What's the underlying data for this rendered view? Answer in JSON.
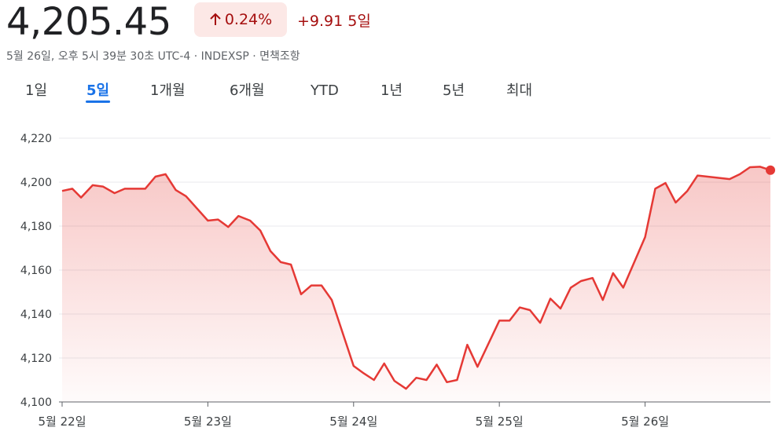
{
  "header": {
    "price": "4,205.45",
    "change_pct": "0.24%",
    "change_abs": "+9.91",
    "period": "5일",
    "subtitle": "5월 26일, 오후 5시 39분 30초 UTC-4 · INDEXSP · 면책조항"
  },
  "tabs": {
    "items": [
      "1일",
      "5일",
      "1개월",
      "6개월",
      "YTD",
      "1년",
      "5년",
      "최대"
    ],
    "selected": 1
  },
  "chart_data": {
    "type": "line",
    "color": "#e53935",
    "grid": true,
    "x": [
      22.0,
      22.07,
      22.13,
      22.21,
      22.28,
      22.36,
      22.43,
      22.57,
      22.64,
      22.71,
      22.78,
      22.85,
      23.0,
      23.07,
      23.14,
      23.21,
      23.29,
      23.36,
      23.43,
      23.5,
      23.57,
      23.64,
      23.71,
      23.78,
      23.85,
      24.0,
      24.07,
      24.14,
      24.21,
      24.28,
      24.36,
      24.43,
      24.5,
      24.57,
      24.64,
      24.71,
      24.78,
      24.85,
      25.0,
      25.07,
      25.14,
      25.21,
      25.28,
      25.35,
      25.42,
      25.49,
      25.56,
      25.64,
      25.71,
      25.78,
      25.85,
      26.0,
      26.07,
      26.14,
      26.21,
      26.29,
      26.36,
      26.58,
      26.65,
      26.72,
      26.79,
      26.86
    ],
    "values": [
      4196,
      4197,
      4193,
      4198.6,
      4198,
      4195,
      4197,
      4197,
      4202.5,
      4203.6,
      4196.4,
      4193.6,
      4182.5,
      4183,
      4179.6,
      4184.6,
      4182.5,
      4178,
      4168.6,
      4163.6,
      4162.5,
      4149,
      4153,
      4153,
      4146.4,
      4116.4,
      4113,
      4110,
      4117.5,
      4109.6,
      4106,
      4111,
      4110,
      4117,
      4109,
      4110,
      4126,
      4116,
      4137,
      4137,
      4143,
      4141.8,
      4136,
      4147,
      4142.5,
      4152,
      4155,
      4156.4,
      4146.4,
      4158.6,
      4152,
      4175,
      4197,
      4199.6,
      4190.7,
      4196,
      4203,
      4201.4,
      4203.6,
      4206.8,
      4207,
      4205.45
    ],
    "xlim": [
      22,
      26.86
    ],
    "xticks": [
      {
        "value": 22,
        "label": "5월 22일"
      },
      {
        "value": 23,
        "label": "5월 23일"
      },
      {
        "value": 24,
        "label": "5월 24일"
      },
      {
        "value": 25,
        "label": "5월 25일"
      },
      {
        "value": 26,
        "label": "5월 26일"
      }
    ],
    "ylim": [
      4100,
      4220
    ],
    "yticks": [
      {
        "value": 4100,
        "label": "4,100"
      },
      {
        "value": 4120,
        "label": "4,120"
      },
      {
        "value": 4140,
        "label": "4,140"
      },
      {
        "value": 4160,
        "label": "4,160"
      },
      {
        "value": 4180,
        "label": "4,180"
      },
      {
        "value": 4200,
        "label": "4,200"
      },
      {
        "value": 4220,
        "label": "4,220"
      }
    ]
  }
}
